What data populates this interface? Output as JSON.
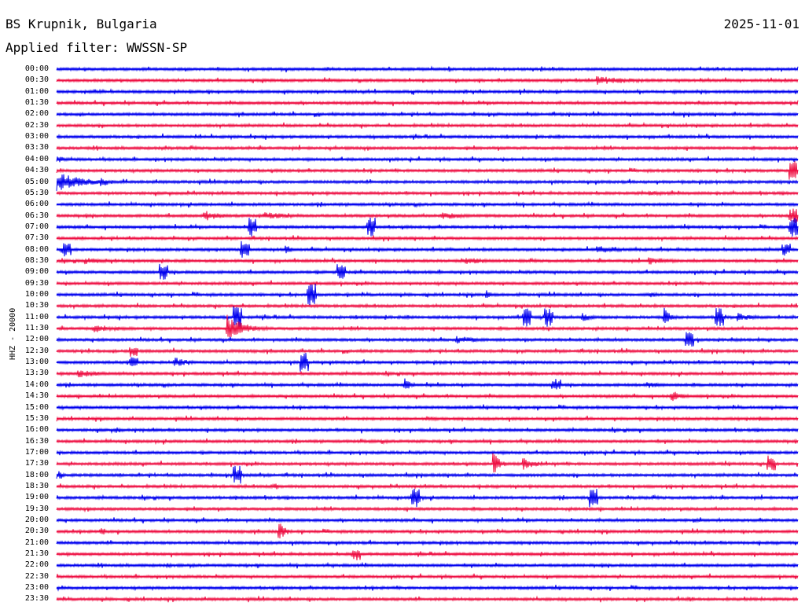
{
  "header": {
    "station": "BS Krupnik, Bulgaria",
    "date": "2025-11-01",
    "filter": "Applied filter: WWSSN-SP"
  },
  "channel_label": "HHZ - 20000",
  "colors": {
    "even": "#0000ee",
    "odd": "#ee1144"
  },
  "rows": [
    {
      "time": "00:00",
      "events": []
    },
    {
      "time": "00:30",
      "events": [
        {
          "t": 0.73,
          "amp": 6,
          "dur": 0.12
        }
      ]
    },
    {
      "time": "01:00",
      "events": []
    },
    {
      "time": "01:30",
      "events": []
    },
    {
      "time": "02:00",
      "events": []
    },
    {
      "time": "02:30",
      "events": []
    },
    {
      "time": "03:00",
      "events": []
    },
    {
      "time": "03:30",
      "events": []
    },
    {
      "time": "04:00",
      "events": [
        {
          "t": 0.0,
          "amp": 4,
          "dur": 0.01
        }
      ]
    },
    {
      "time": "04:30",
      "events": [
        {
          "t": 0.99,
          "amp": 12,
          "dur": 0.01
        }
      ]
    },
    {
      "time": "05:00",
      "events": [
        {
          "t": 0.0,
          "amp": 13,
          "dur": 0.08
        },
        {
          "t": 0.06,
          "amp": 6,
          "dur": 0.04
        }
      ]
    },
    {
      "time": "05:30",
      "events": [
        {
          "t": 0.8,
          "amp": 3,
          "dur": 0.12
        }
      ]
    },
    {
      "time": "06:00",
      "events": []
    },
    {
      "time": "06:30",
      "events": [
        {
          "t": 0.2,
          "amp": 7,
          "dur": 0.05
        },
        {
          "t": 0.28,
          "amp": 5,
          "dur": 0.1
        },
        {
          "t": 0.52,
          "amp": 5,
          "dur": 0.08
        },
        {
          "t": 0.99,
          "amp": 10,
          "dur": 0.01
        }
      ]
    },
    {
      "time": "07:00",
      "events": [
        {
          "t": 0.26,
          "amp": 12,
          "dur": 0.01
        },
        {
          "t": 0.42,
          "amp": 12,
          "dur": 0.01
        },
        {
          "t": 0.99,
          "amp": 12,
          "dur": 0.01
        }
      ]
    },
    {
      "time": "07:30",
      "events": []
    },
    {
      "time": "08:00",
      "events": [
        {
          "t": 0.01,
          "amp": 9,
          "dur": 0.01
        },
        {
          "t": 0.25,
          "amp": 12,
          "dur": 0.01
        },
        {
          "t": 0.31,
          "amp": 6,
          "dur": 0.02
        },
        {
          "t": 0.73,
          "amp": 5,
          "dur": 0.08
        },
        {
          "t": 0.98,
          "amp": 8,
          "dur": 0.01
        }
      ]
    },
    {
      "time": "08:30",
      "events": [
        {
          "t": 0.04,
          "amp": 5,
          "dur": 0.06
        },
        {
          "t": 0.55,
          "amp": 5,
          "dur": 0.08
        },
        {
          "t": 0.8,
          "amp": 5,
          "dur": 0.08
        }
      ]
    },
    {
      "time": "09:00",
      "events": [
        {
          "t": 0.14,
          "amp": 11,
          "dur": 0.01
        },
        {
          "t": 0.38,
          "amp": 11,
          "dur": 0.01
        }
      ]
    },
    {
      "time": "09:30",
      "events": []
    },
    {
      "time": "10:00",
      "events": [
        {
          "t": 0.34,
          "amp": 14,
          "dur": 0.01
        },
        {
          "t": 0.58,
          "amp": 6,
          "dur": 0.02
        },
        {
          "t": 0.8,
          "amp": 4,
          "dur": 0.03
        }
      ]
    },
    {
      "time": "10:30",
      "events": []
    },
    {
      "time": "11:00",
      "events": [
        {
          "t": 0.24,
          "amp": 15,
          "dur": 0.01
        },
        {
          "t": 0.63,
          "amp": 12,
          "dur": 0.01
        },
        {
          "t": 0.66,
          "amp": 14,
          "dur": 0.01
        },
        {
          "t": 0.71,
          "amp": 6,
          "dur": 0.03
        },
        {
          "t": 0.82,
          "amp": 12,
          "dur": 0.02
        },
        {
          "t": 0.89,
          "amp": 12,
          "dur": 0.01
        },
        {
          "t": 0.92,
          "amp": 6,
          "dur": 0.04
        }
      ]
    },
    {
      "time": "11:30",
      "events": [
        {
          "t": 0.05,
          "amp": 5,
          "dur": 0.1
        },
        {
          "t": 0.23,
          "amp": 18,
          "dur": 0.05
        }
      ]
    },
    {
      "time": "12:00",
      "events": [
        {
          "t": 0.54,
          "amp": 5,
          "dur": 0.08
        },
        {
          "t": 0.85,
          "amp": 10,
          "dur": 0.01
        }
      ]
    },
    {
      "time": "12:30",
      "events": [
        {
          "t": 0.1,
          "amp": 8,
          "dur": 0.01
        }
      ]
    },
    {
      "time": "13:00",
      "events": [
        {
          "t": 0.1,
          "amp": 8,
          "dur": 0.01
        },
        {
          "t": 0.16,
          "amp": 7,
          "dur": 0.04
        },
        {
          "t": 0.33,
          "amp": 12,
          "dur": 0.01
        }
      ]
    },
    {
      "time": "13:30",
      "events": [
        {
          "t": 0.03,
          "amp": 5,
          "dur": 0.08
        }
      ]
    },
    {
      "time": "14:00",
      "events": [
        {
          "t": 0.47,
          "amp": 9,
          "dur": 0.02
        },
        {
          "t": 0.67,
          "amp": 8,
          "dur": 0.01
        },
        {
          "t": 0.8,
          "amp": 4,
          "dur": 0.05
        }
      ]
    },
    {
      "time": "14:30",
      "events": [
        {
          "t": 0.83,
          "amp": 7,
          "dur": 0.04
        }
      ]
    },
    {
      "time": "15:00",
      "events": []
    },
    {
      "time": "15:30",
      "events": [
        {
          "t": 0.5,
          "amp": 4,
          "dur": 0.05
        },
        {
          "t": 0.95,
          "amp": 3,
          "dur": 0.04
        }
      ]
    },
    {
      "time": "16:00",
      "events": [
        {
          "t": 0.08,
          "amp": 4,
          "dur": 0.03
        }
      ]
    },
    {
      "time": "16:30",
      "events": [
        {
          "t": 0.41,
          "amp": 3,
          "dur": 0.02
        }
      ]
    },
    {
      "time": "17:00",
      "events": []
    },
    {
      "time": "17:30",
      "events": [
        {
          "t": 0.59,
          "amp": 14,
          "dur": 0.02
        },
        {
          "t": 0.63,
          "amp": 8,
          "dur": 0.04
        },
        {
          "t": 0.96,
          "amp": 11,
          "dur": 0.01
        }
      ]
    },
    {
      "time": "18:00",
      "events": [
        {
          "t": 0.0,
          "amp": 5,
          "dur": 0.01
        },
        {
          "t": 0.24,
          "amp": 12,
          "dur": 0.01
        }
      ]
    },
    {
      "time": "18:30",
      "events": [
        {
          "t": 0.29,
          "amp": 4,
          "dur": 0.01
        }
      ]
    },
    {
      "time": "19:00",
      "events": [
        {
          "t": 0.48,
          "amp": 12,
          "dur": 0.01
        },
        {
          "t": 0.72,
          "amp": 12,
          "dur": 0.01
        }
      ]
    },
    {
      "time": "19:30",
      "events": []
    },
    {
      "time": "20:00",
      "events": [
        {
          "t": 0.86,
          "amp": 3,
          "dur": 0.04
        }
      ]
    },
    {
      "time": "20:30",
      "events": [
        {
          "t": 0.06,
          "amp": 6,
          "dur": 0.02
        },
        {
          "t": 0.3,
          "amp": 13,
          "dur": 0.02
        }
      ]
    },
    {
      "time": "21:00",
      "events": []
    },
    {
      "time": "21:30",
      "events": [
        {
          "t": 0.4,
          "amp": 8,
          "dur": 0.01
        }
      ]
    },
    {
      "time": "22:00",
      "events": [
        {
          "t": 0.15,
          "amp": 3,
          "dur": 0.02
        }
      ]
    },
    {
      "time": "22:30",
      "events": []
    },
    {
      "time": "23:00",
      "events": []
    },
    {
      "time": "23:30",
      "events": [
        {
          "t": 0.85,
          "amp": 3,
          "dur": 0.01
        }
      ]
    }
  ]
}
